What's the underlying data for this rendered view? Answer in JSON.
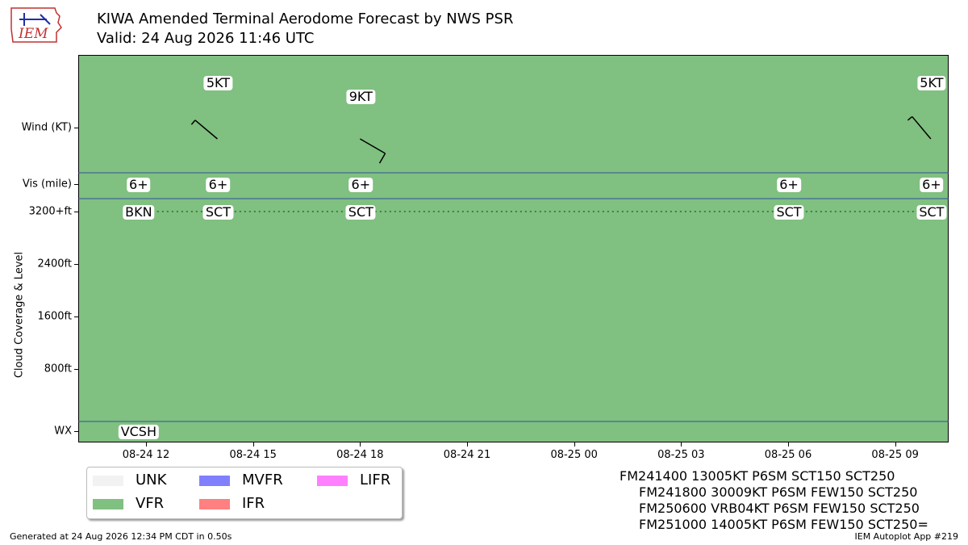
{
  "header": {
    "logo_text": "IEM",
    "title_line1": "KIWA Amended Terminal Aerodome Forecast by NWS PSR",
    "title_line2": "Valid: 24 Aug 2026 11:46 UTC"
  },
  "chart_data": {
    "type": "timeline",
    "ylabel": "Cloud Coverage & Level",
    "row_labels": {
      "wind": "Wind (KT)",
      "vis": "Vis (mile)",
      "wx": "WX"
    },
    "yticks": [
      "3200+ft",
      "2400ft",
      "1600ft",
      "800ft"
    ],
    "ytick_values": [
      3200,
      2400,
      1600,
      800
    ],
    "xtick_labels": [
      "08-24 12",
      "08-24 15",
      "08-24 18",
      "08-24 21",
      "08-25 00",
      "08-25 03",
      "08-25 06",
      "08-25 09"
    ],
    "xtick_hours": [
      12,
      15,
      18,
      21,
      24,
      27,
      30,
      33
    ],
    "xlim_hours": [
      10.1,
      34.5
    ],
    "forecast": [
      {
        "hour": 11.77,
        "vis": "6+",
        "cloud": "BKN",
        "wx": "VCSH"
      },
      {
        "hour": 14.0,
        "wind_label": "5KT",
        "wind_dir": 130,
        "wind_speed": 5,
        "vis": "6+",
        "cloud": "SCT"
      },
      {
        "hour": 18.0,
        "wind_label": "9KT",
        "wind_dir": 300,
        "wind_speed": 9,
        "vis": "6+",
        "cloud": "SCT"
      },
      {
        "hour": 30.0,
        "vis": "6+",
        "cloud": "SCT"
      },
      {
        "hour": 34.0,
        "wind_label": "5KT",
        "wind_dir": 140,
        "wind_speed": 5,
        "vis": "6+",
        "cloud": "SCT"
      }
    ],
    "category": "VFR",
    "colors": {
      "UNK": "#f2f2f2",
      "VFR": "#80c080",
      "MVFR": "#8080ff",
      "IFR": "#ff8080",
      "LIFR": "#ff80ff"
    },
    "legend": [
      "UNK",
      "VFR",
      "MVFR",
      "IFR",
      "LIFR"
    ]
  },
  "raw_taf": [
    "FM241400 13005KT P6SM SCT150 SCT250",
    "FM241800 30009KT P6SM FEW150 SCT250",
    "FM250600 VRB04KT P6SM FEW150 SCT250",
    "FM251000 14005KT P6SM FEW150 SCT250="
  ],
  "footer": {
    "left": "Generated at 24 Aug 2026 12:34 PM CDT in 0.50s",
    "right": "IEM Autoplot App #219"
  }
}
